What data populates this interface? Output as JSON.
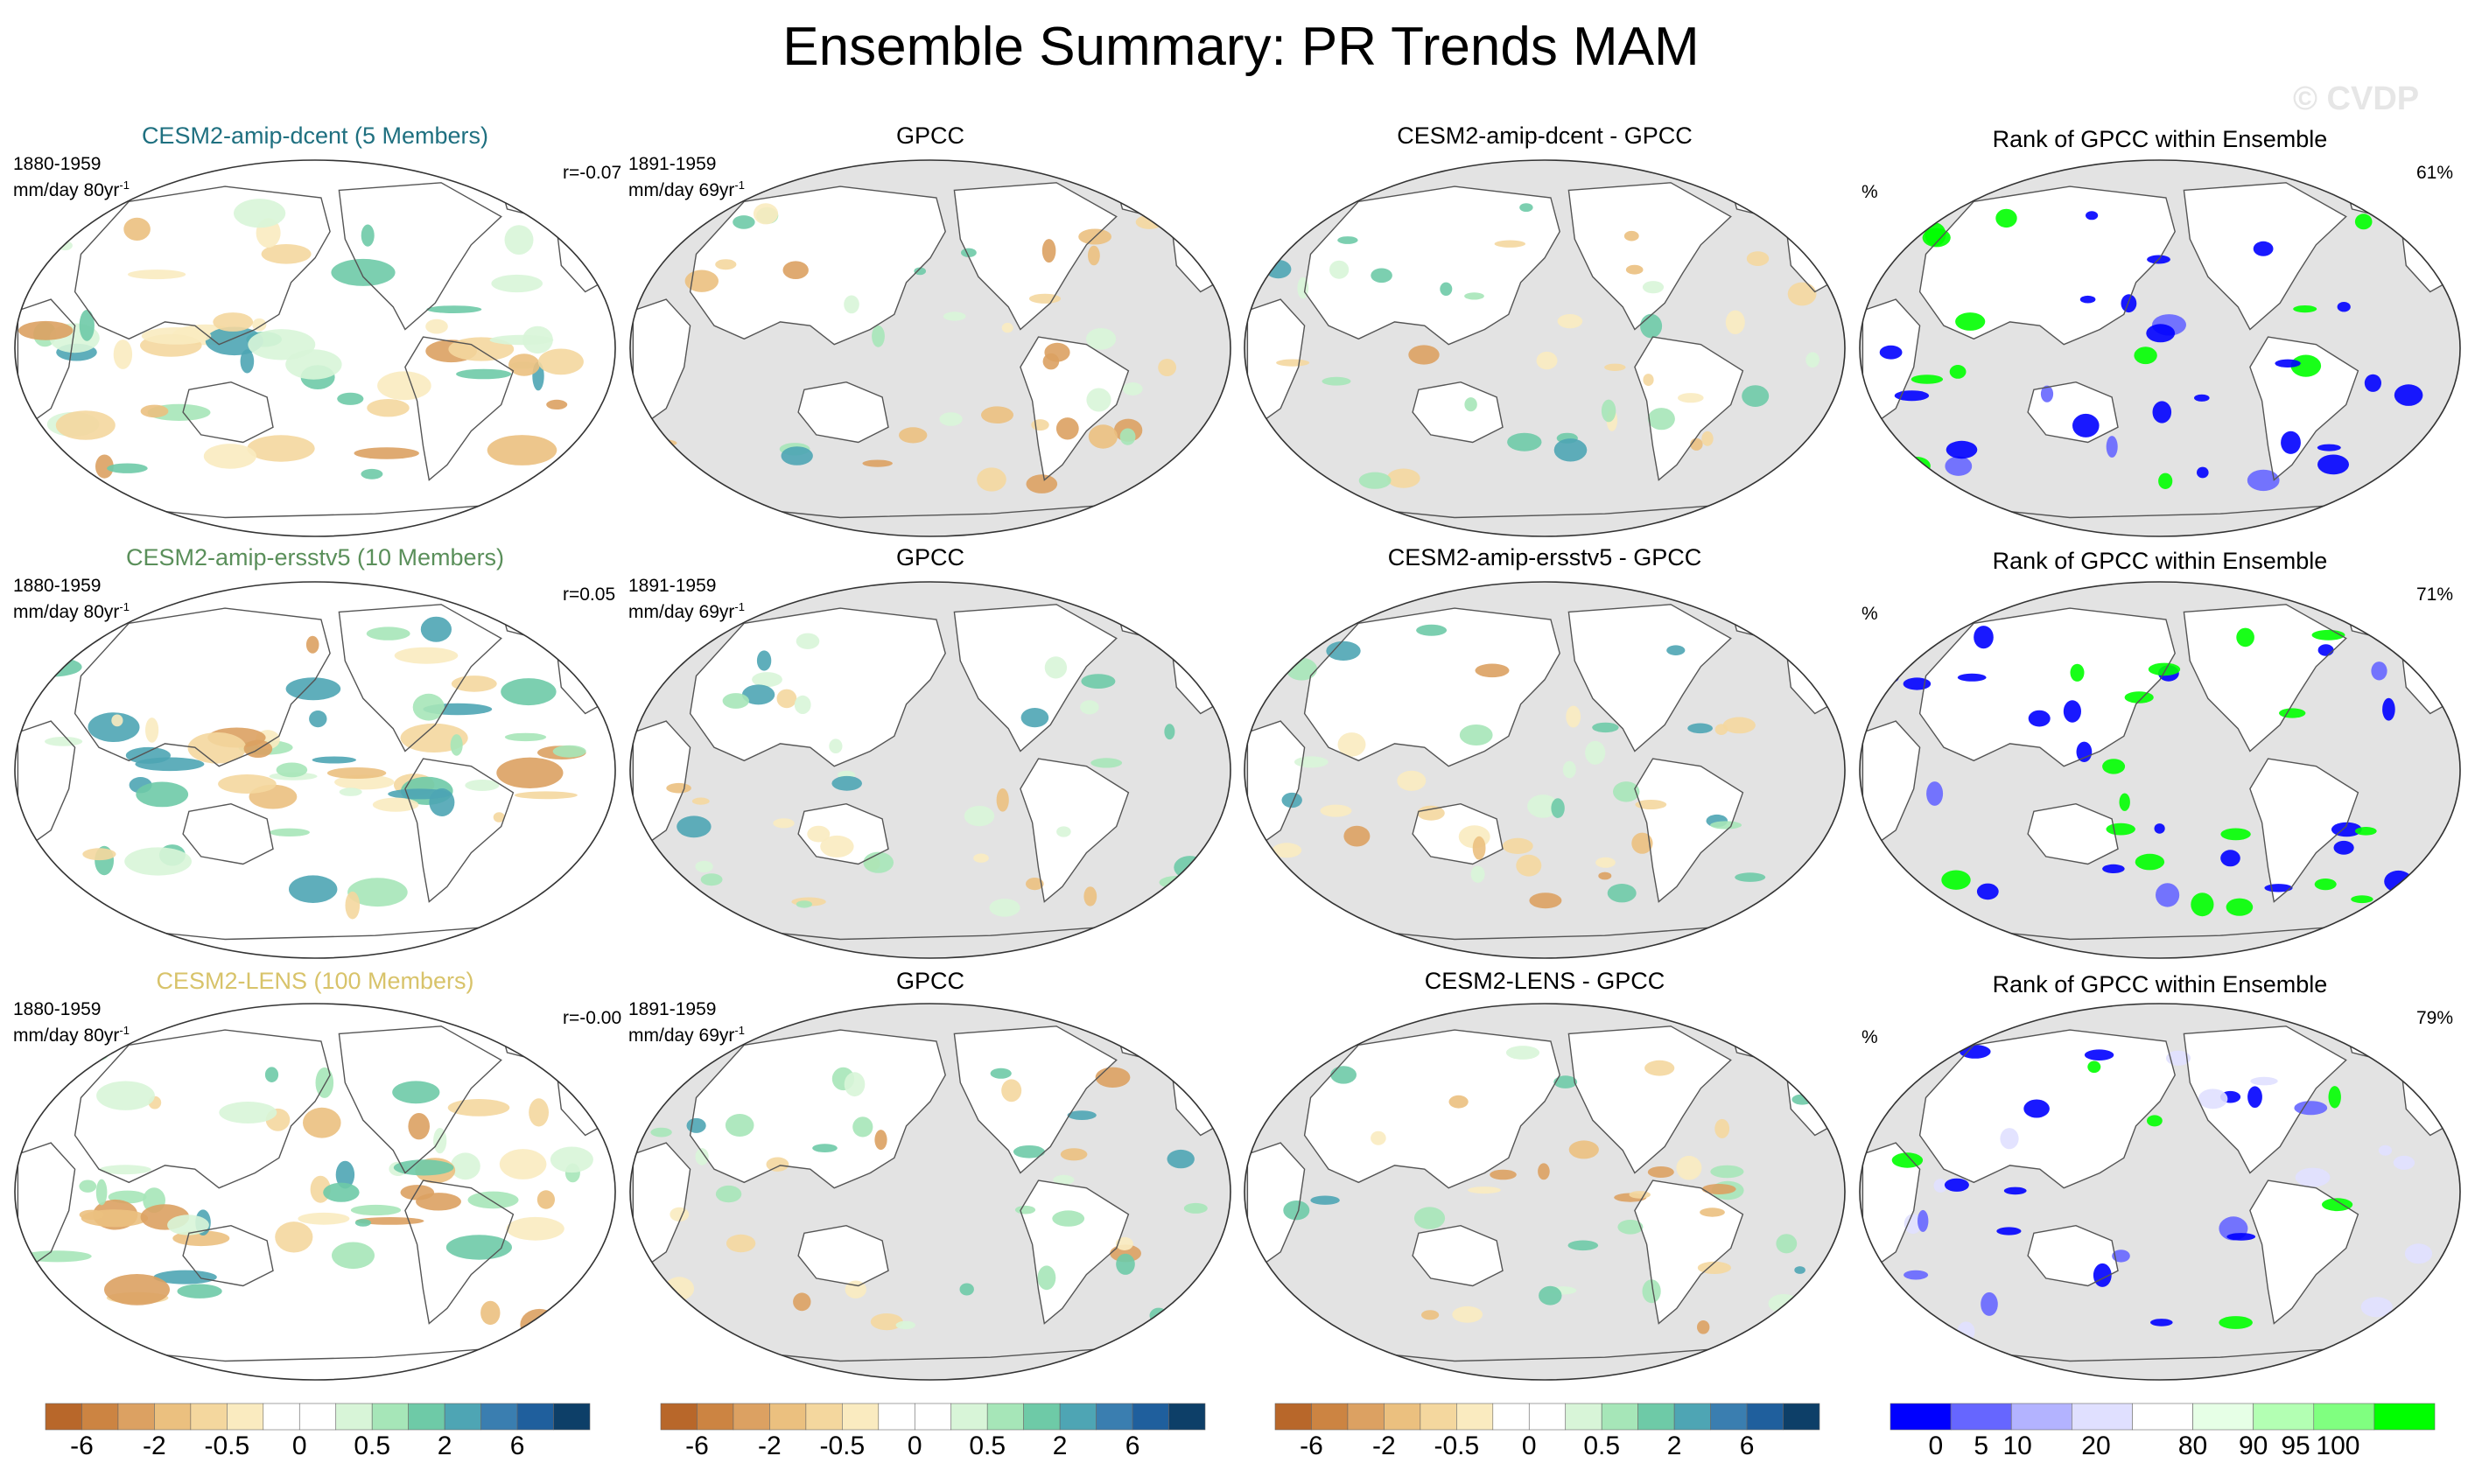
{
  "title": "Ensemble Summary: PR Trends MAM",
  "watermark": "© CVDP",
  "rows": [
    {
      "model": {
        "title": "CESM2-amip-dcent (5 Members)",
        "color": "#1f7080",
        "period": "1880-1959",
        "units": "mm/day 80yr",
        "units_sup": "-1",
        "r": "r=-0.07"
      },
      "obs": {
        "title": "GPCC",
        "period": "1891-1959",
        "units": "mm/day 69yr",
        "units_sup": "-1"
      },
      "diff": {
        "title": "CESM2-amip-dcent - GPCC"
      },
      "rank": {
        "title": "Rank of GPCC within Ensemble",
        "units": "%",
        "pct": "61%"
      }
    },
    {
      "model": {
        "title": "CESM2-amip-ersstv5 (10 Members)",
        "color": "#5a8f5a",
        "period": "1880-1959",
        "units": "mm/day 80yr",
        "units_sup": "-1",
        "r": "r=0.05"
      },
      "obs": {
        "title": "GPCC",
        "period": "1891-1959",
        "units": "mm/day 69yr",
        "units_sup": "-1"
      },
      "diff": {
        "title": "CESM2-amip-ersstv5 - GPCC"
      },
      "rank": {
        "title": "Rank of GPCC within Ensemble",
        "units": "%",
        "pct": "71%"
      }
    },
    {
      "model": {
        "title": "CESM2-LENS (100 Members)",
        "color": "#d8c36a",
        "period": "1880-1959",
        "units": "mm/day 80yr",
        "units_sup": "-1",
        "r": "r=-0.00"
      },
      "obs": {
        "title": "GPCC",
        "period": "1891-1959",
        "units": "mm/day 69yr",
        "units_sup": "-1"
      },
      "diff": {
        "title": "CESM2-LENS - GPCC"
      },
      "rank": {
        "title": "Rank of GPCC within Ensemble",
        "units": "%",
        "pct": "79%"
      }
    }
  ],
  "trend_colorbar": {
    "colors": [
      "#b8672a",
      "#cc8442",
      "#dca162",
      "#ebc07f",
      "#f4d79e",
      "#faebc0",
      "#ffffff",
      "#ffffff",
      "#d8f5d8",
      "#a6e6b8",
      "#6ecaa7",
      "#4ea5b4",
      "#3a7eb0",
      "#1f5f9d",
      "#0d3f68"
    ],
    "labels": [
      "-6",
      "-2",
      "-0.5",
      "0",
      "0.5",
      "2",
      "6"
    ]
  },
  "rank_colorbar": {
    "colors": [
      "#0000ff",
      "#6666ff",
      "#b3b3ff",
      "#e0e0ff",
      "#ffffff",
      "#e6ffe6",
      "#b3ffb3",
      "#80ff80",
      "#00ff00"
    ],
    "labels": [
      "0",
      "5",
      "10",
      "20",
      "80",
      "90",
      "95",
      "100"
    ]
  },
  "colors": {
    "ocean_masked": "#e3e3e3",
    "coast": "#555555",
    "background": "#ffffff"
  }
}
